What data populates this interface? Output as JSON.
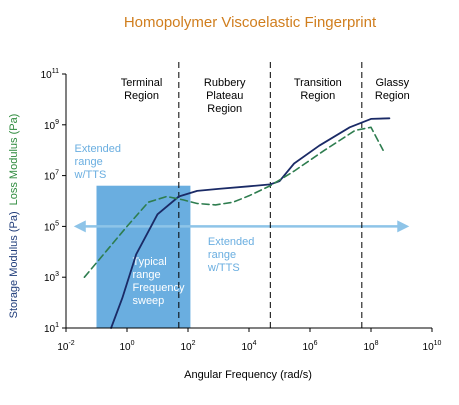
{
  "colors": {
    "title": "#d07e1e",
    "storage_axis_label": "#1f3c7a",
    "loss_axis_label": "#2e8b3d",
    "storage_curve": "#1a2a66",
    "loss_curve": "#2e7d4f",
    "typical_box": "#6aaee0",
    "extended_text": "#6aaee0",
    "arrow": "#8ec4e8",
    "axis": "#000000",
    "region_divider": "#000000"
  },
  "chart_data": {
    "type": "line",
    "title": "Homopolymer Viscoelastic Fingerprint",
    "xlabel": "Angular Frequency (rad/s)",
    "ylabel_storage": "Storage Modulus (Pa)",
    "ylabel_loss": "Loss Modulus (Pa)",
    "x_scale": "log",
    "y_scale": "log",
    "xlim": [
      0.01,
      10000000000
    ],
    "ylim": [
      10,
      100000000000
    ],
    "x_ticks": [
      {
        "value": 0.01,
        "base": "10",
        "exp": "-2"
      },
      {
        "value": 1,
        "base": "10",
        "exp": "0"
      },
      {
        "value": 100,
        "base": "10",
        "exp": "2"
      },
      {
        "value": 10000,
        "base": "10",
        "exp": "4"
      },
      {
        "value": 1000000,
        "base": "10",
        "exp": "6"
      },
      {
        "value": 100000000,
        "base": "10",
        "exp": "8"
      },
      {
        "value": 10000000000,
        "base": "10",
        "exp": "10"
      }
    ],
    "y_ticks": [
      {
        "value": 10,
        "base": "10",
        "exp": "1"
      },
      {
        "value": 1000,
        "base": "10",
        "exp": "3"
      },
      {
        "value": 100000,
        "base": "10",
        "exp": "5"
      },
      {
        "value": 10000000,
        "base": "10",
        "exp": "7"
      },
      {
        "value": 1000000000,
        "base": "10",
        "exp": "9"
      },
      {
        "value": 100000000000,
        "base": "10",
        "exp": "11"
      }
    ],
    "region_boundaries": [
      50,
      50000,
      50000000
    ],
    "regions": [
      {
        "lines": [
          "Terminal",
          "Region"
        ],
        "x": 3
      },
      {
        "lines": [
          "Rubbery",
          "Plateau",
          "Region"
        ],
        "x": 1600
      },
      {
        "lines": [
          "Transition",
          "Region"
        ],
        "x": 1800000
      },
      {
        "lines": [
          "Glassy",
          "Region"
        ],
        "x": 500000000
      }
    ],
    "series": [
      {
        "key": "storage",
        "style": "solid",
        "x": [
          0.3,
          0.7,
          2,
          10,
          50,
          200,
          1000,
          10000,
          50000,
          100000,
          300000,
          2000000,
          20000000,
          100000000,
          400000000
        ],
        "y": [
          10,
          150,
          8000,
          300000,
          1500000,
          2500000,
          3000000,
          3800000,
          4500000,
          6000000,
          30000000,
          150000000,
          800000000,
          1700000000,
          1800000000
        ]
      },
      {
        "key": "loss",
        "style": "dashed",
        "x": [
          0.04,
          0.2,
          1,
          5,
          20,
          70,
          200,
          800,
          3000,
          10000,
          50000,
          300000,
          3000000,
          30000000,
          100000000,
          250000000
        ],
        "y": [
          1000,
          10000,
          100000,
          900000,
          1500000,
          1100000,
          800000,
          700000,
          900000,
          1600000,
          4000000,
          15000000,
          100000000,
          600000000,
          800000000,
          100000000
        ]
      }
    ],
    "typical_range_box": {
      "x": [
        0.1,
        120
      ],
      "y": [
        10,
        4000000
      ],
      "lines": [
        "Typical",
        "range",
        "Frequency",
        "sweep"
      ]
    },
    "extended_range_upper": {
      "lines": [
        "Extended",
        "range",
        "w/TTS"
      ],
      "x": 0.03,
      "y": 200000000
    },
    "extended_range_lower": {
      "lines": [
        "Extended",
        "range",
        "w/TTS"
      ],
      "x": 450,
      "y": 25000
    },
    "extended_arrow": {
      "y": 100000,
      "x": [
        0.018,
        1800000000
      ]
    }
  }
}
